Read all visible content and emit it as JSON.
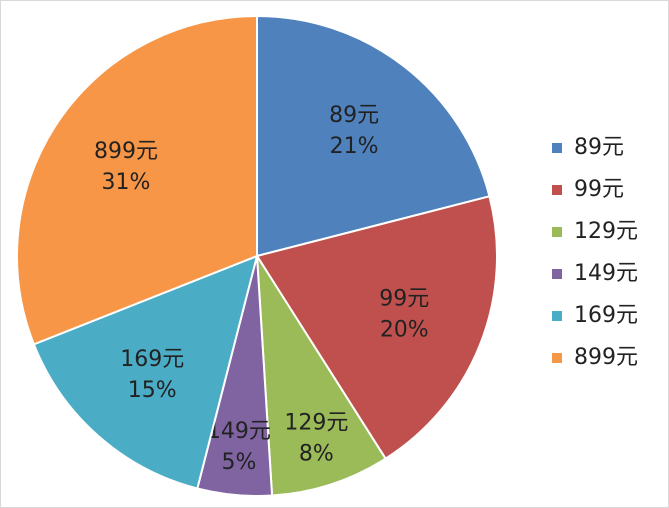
{
  "chart_data": {
    "type": "pie",
    "categories": [
      "89元",
      "99元",
      "129元",
      "149元",
      "169元",
      "899元"
    ],
    "values": [
      21,
      20,
      8,
      5,
      15,
      31
    ],
    "value_labels": [
      "21%",
      "20%",
      "8%",
      "5%",
      "15%",
      "31%"
    ],
    "colors": [
      "#4f81bd",
      "#c0504d",
      "#9bbb59",
      "#8064a2",
      "#4bacc6",
      "#f79646"
    ],
    "legend": "right"
  }
}
